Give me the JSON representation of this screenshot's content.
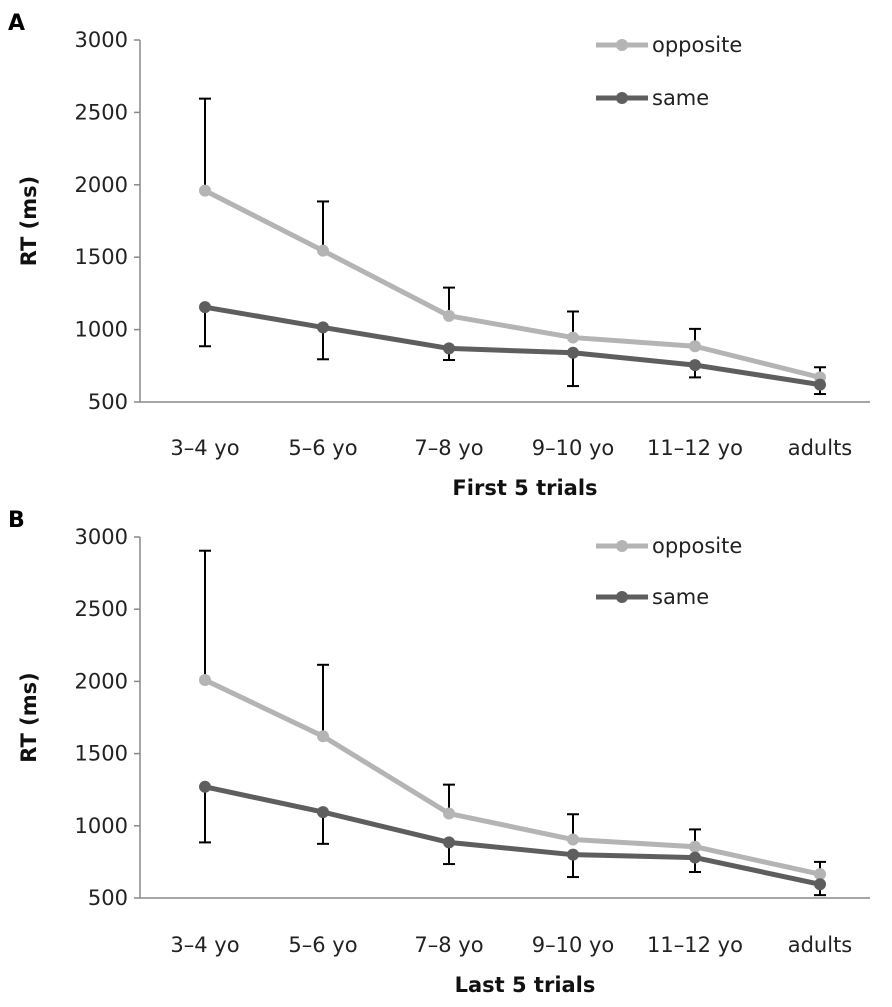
{
  "chart_data": [
    {
      "type": "line",
      "panel_label": "A",
      "xlabel": "First 5 trials",
      "ylabel": "RT (ms)",
      "categories": [
        "3–4 yo",
        "5–6 yo",
        "7–8 yo",
        "9–10 yo",
        "11–12 yo",
        "adults"
      ],
      "ylim": [
        500,
        3000
      ],
      "yticks": [
        "3000",
        "2500",
        "2000",
        "1500",
        "1000",
        "500"
      ],
      "legend_position": "top-right",
      "grid": false,
      "series": [
        {
          "name": "opposite",
          "color": "#b4b4b4",
          "values": [
            1960,
            1545,
            1095,
            945,
            885,
            670
          ],
          "error_upper": [
            2595,
            1885,
            1290,
            1125,
            1005,
            740
          ],
          "error_lower": null
        },
        {
          "name": "same",
          "color": "#5e5e5e",
          "values": [
            1155,
            1015,
            870,
            840,
            755,
            620
          ],
          "error_upper": null,
          "error_lower": [
            885,
            795,
            790,
            610,
            670,
            555
          ]
        }
      ]
    },
    {
      "type": "line",
      "panel_label": "B",
      "xlabel": "Last 5 trials",
      "ylabel": "RT (ms)",
      "categories": [
        "3–4 yo",
        "5–6 yo",
        "7–8 yo",
        "9–10 yo",
        "11–12 yo",
        "adults"
      ],
      "ylim": [
        500,
        3000
      ],
      "yticks": [
        "3000",
        "2500",
        "2000",
        "1500",
        "1000",
        "500"
      ],
      "legend_position": "top-right",
      "grid": false,
      "series": [
        {
          "name": "opposite",
          "color": "#b4b4b4",
          "values": [
            2010,
            1620,
            1085,
            905,
            855,
            665
          ],
          "error_upper": [
            2905,
            2115,
            1285,
            1080,
            975,
            750
          ],
          "error_lower": null
        },
        {
          "name": "same",
          "color": "#5e5e5e",
          "values": [
            1270,
            1095,
            885,
            800,
            780,
            595
          ],
          "error_upper": null,
          "error_lower": [
            885,
            875,
            735,
            645,
            680,
            520
          ]
        }
      ]
    }
  ]
}
